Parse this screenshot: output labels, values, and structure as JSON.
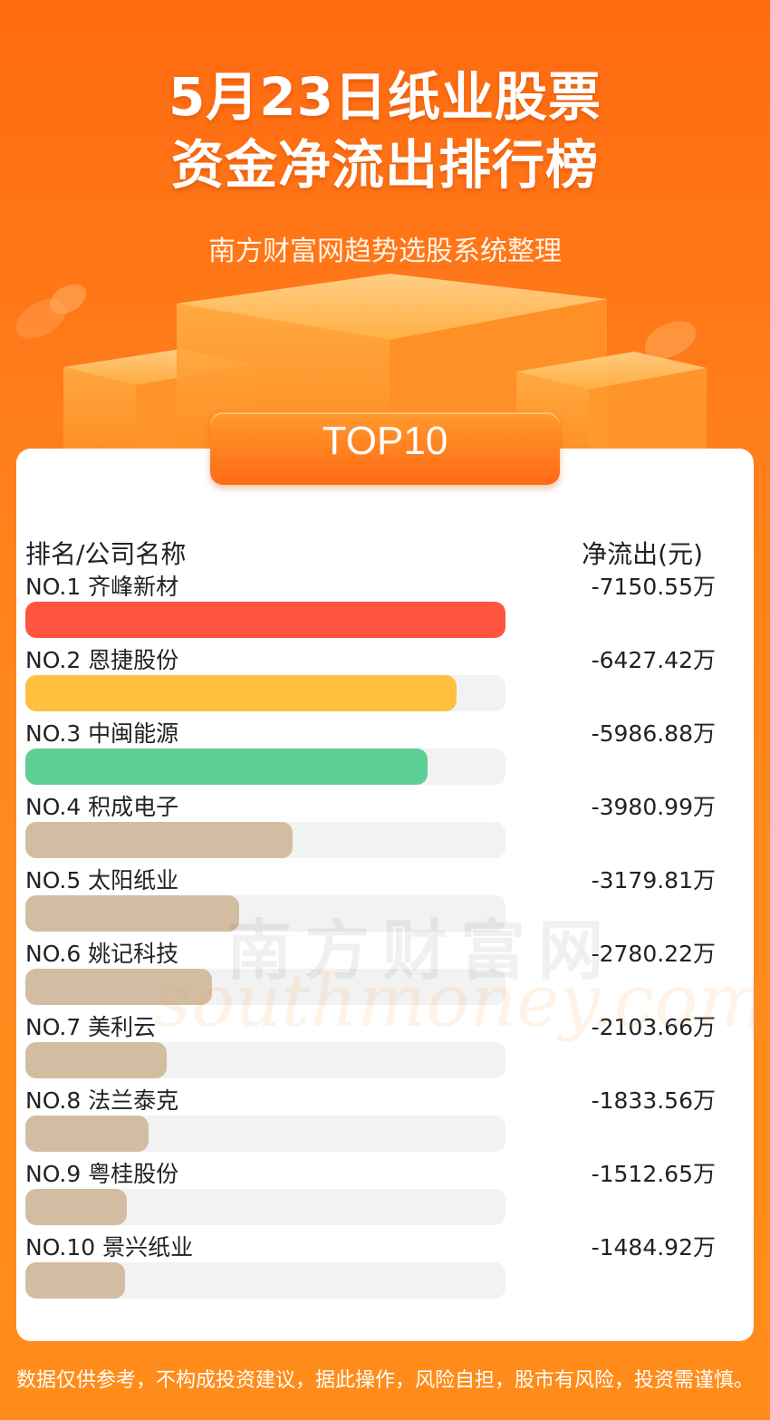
{
  "header": {
    "title_line1": "5月23日纸业股票",
    "title_line2": "资金净流出排行榜",
    "subtitle": "南方财富网趋势选股系统整理",
    "badge": "TOP10"
  },
  "table": {
    "col_left": "排名/公司名称",
    "col_right": "净流出(元)"
  },
  "chart_data": {
    "type": "bar",
    "categories": [
      "NO.1 齐峰新材",
      "NO.2 恩捷股份",
      "NO.3 中闽能源",
      "NO.4 积成电子",
      "NO.5 太阳纸业",
      "NO.6 姚记科技",
      "NO.7 美利云",
      "NO.8 法兰泰克",
      "NO.9 粤桂股份",
      "NO.10 景兴纸业"
    ],
    "values": [
      -7150.55,
      -6427.42,
      -5986.88,
      -3980.99,
      -3179.81,
      -2780.22,
      -2103.66,
      -1833.56,
      -1512.65,
      -1484.92
    ],
    "labels": [
      "-7150.55万",
      "-6427.42万",
      "-5986.88万",
      "-3980.99万",
      "-3179.81万",
      "-2780.22万",
      "-2103.66万",
      "-1833.56万",
      "-1512.65万",
      "-1484.92万"
    ],
    "colors": [
      "#ff5540",
      "#ffc040",
      "#5ecf94",
      "#d2bda3",
      "#d2bda3",
      "#d2bda3",
      "#d2bda3",
      "#d2bda3",
      "#d2bda3",
      "#d2bda3"
    ],
    "track_color": "#f2f2f2"
  },
  "watermark": {
    "cn": "南方财富网",
    "en": "southmoney.com"
  },
  "footer": {
    "disclaimer": "数据仅供参考，不构成投资建议，据此操作，风险自担，股市有风险，投资需谨慎。"
  }
}
